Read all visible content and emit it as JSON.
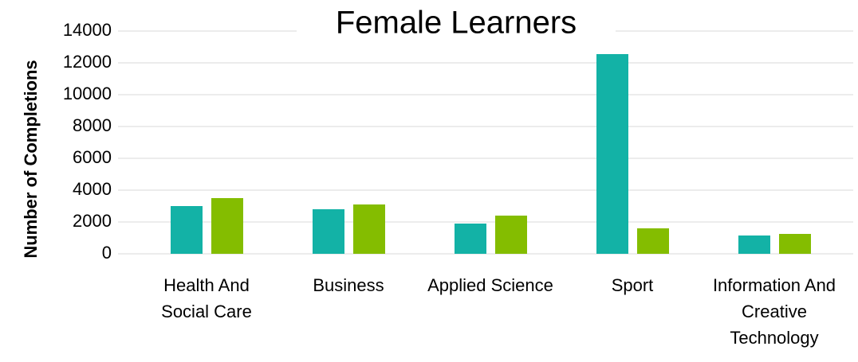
{
  "chart_data": {
    "type": "bar",
    "title": "Female Learners",
    "y_label": "Number of  Completions",
    "categories": [
      "Health And Social Care",
      "Business",
      "Applied Science",
      "Sport",
      "Information And Creative Technology"
    ],
    "series": [
      {
        "color": "#13b2a6",
        "values": [
          3000,
          2800,
          1900,
          12550,
          1150
        ]
      },
      {
        "color": "#84bd00",
        "values": [
          3500,
          3100,
          2400,
          1600,
          1250
        ]
      }
    ],
    "ylim": [
      0,
      14000
    ],
    "yticks": [
      0,
      2000,
      4000,
      6000,
      8000,
      10000,
      12000,
      14000
    ],
    "grid": true
  }
}
